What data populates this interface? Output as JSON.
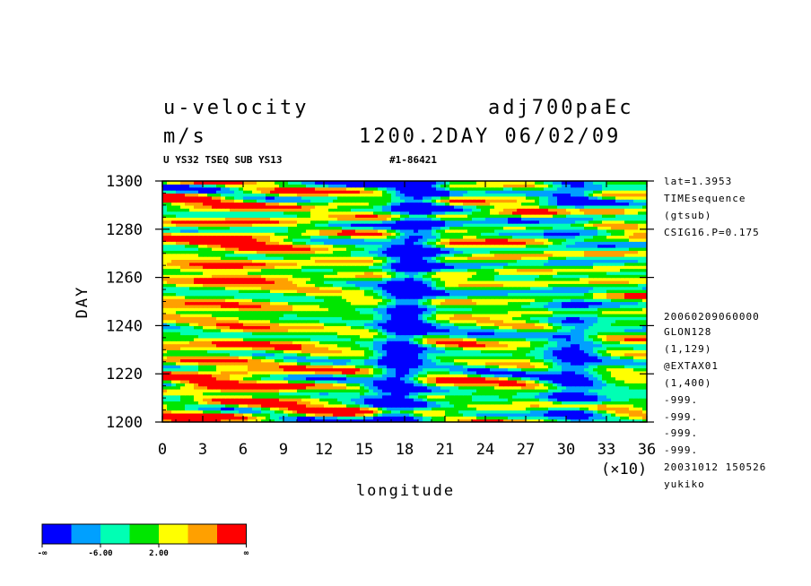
{
  "header": {
    "title_left": "u-velocity",
    "title_right": "adj700paEc",
    "units": "m/s",
    "time_label": "1200.2DAY 06/02/09",
    "subtitle_left": "U YS32 TSEQ SUB YS13",
    "subtitle_right": "#1-86421"
  },
  "side_info": {
    "top": [
      "lat=1.3953",
      "TIMEsequence",
      "(gtsub)",
      "CSIG16.P=0.175"
    ],
    "bottom": [
      "20060209060000",
      "GLON128",
      "(1,129)",
      "@EXTAX01",
      "(1,400)",
      "-999.",
      "-999.",
      "-999.",
      "-999.",
      "20031012 150526",
      "yukiko"
    ]
  },
  "colorbar": {
    "colors": [
      "#0000ff",
      "#00a0ff",
      "#00ffb4",
      "#00e600",
      "#ffff00",
      "#ffa000",
      "#ff0000"
    ],
    "tick_labels": [
      "-∞",
      "-6.00",
      "2.00",
      "∞"
    ]
  },
  "chart_data": {
    "type": "heatmap",
    "title": "u-velocity",
    "xlabel": "longitude",
    "ylabel": "DAY",
    "x_multiplier_label": "(×10)",
    "xlim": [
      0,
      36
    ],
    "ylim": [
      1200,
      1300
    ],
    "x_ticks": [
      "0",
      "3",
      "6",
      "9",
      "12",
      "15",
      "18",
      "21",
      "24",
      "27",
      "30",
      "33",
      "36"
    ],
    "y_ticks": [
      "1200",
      "1220",
      "1240",
      "1260",
      "1280",
      "1300"
    ],
    "levels": [
      "-∞",
      "-6.00",
      "2.00",
      "∞"
    ],
    "dominant_low_bands_longitude": [
      [
        14,
        20
      ],
      [
        28,
        33
      ]
    ],
    "dominant_high_region": {
      "longitude": [
        0,
        12
      ],
      "day": [
        1215,
        1300
      ]
    }
  }
}
